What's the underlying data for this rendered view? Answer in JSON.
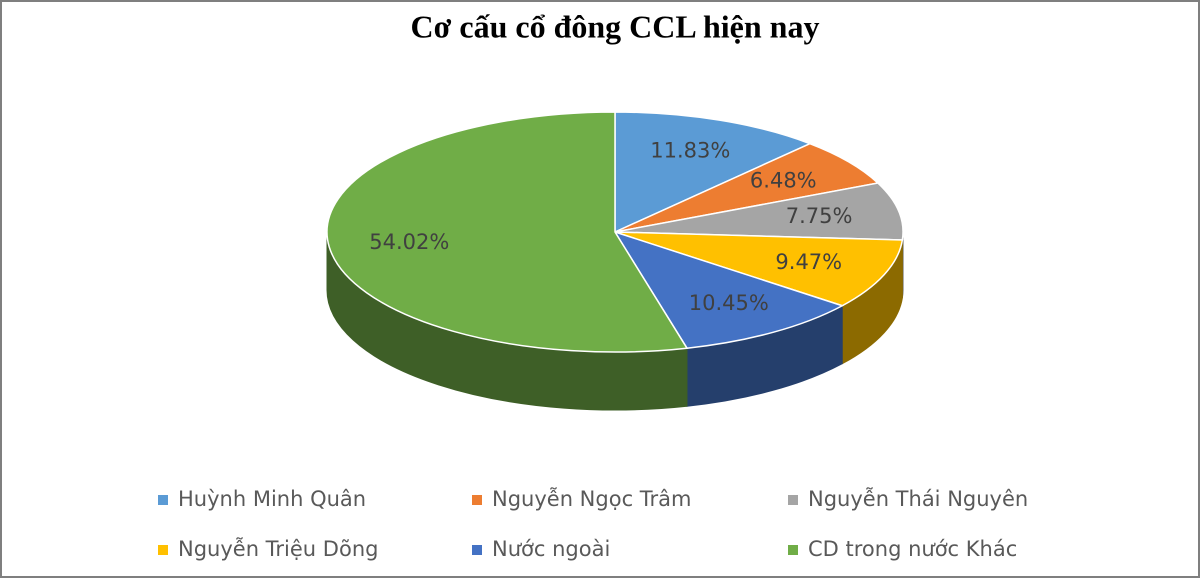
{
  "chart_data": {
    "type": "pie3d",
    "title": "Cơ cấu cổ đông CCL hiện nay",
    "categories": [
      "Huỳnh Minh Quân",
      "Nguyễn Ngọc Trâm",
      "Nguyễn Thái Nguyên",
      "Nguyễn Triệu Dõng",
      "Nước ngoài",
      "CD trong nước Khác"
    ],
    "values": [
      11.83,
      6.48,
      7.75,
      9.47,
      10.45,
      54.02
    ],
    "value_labels": [
      "11.83%",
      "6.48%",
      "7.75%",
      "9.47%",
      "10.45%",
      "54.02%"
    ],
    "colors": [
      "#5b9bd5",
      "#ed7d31",
      "#a5a5a5",
      "#ffc000",
      "#4472c4",
      "#70ad47"
    ],
    "legend": "bottom"
  }
}
